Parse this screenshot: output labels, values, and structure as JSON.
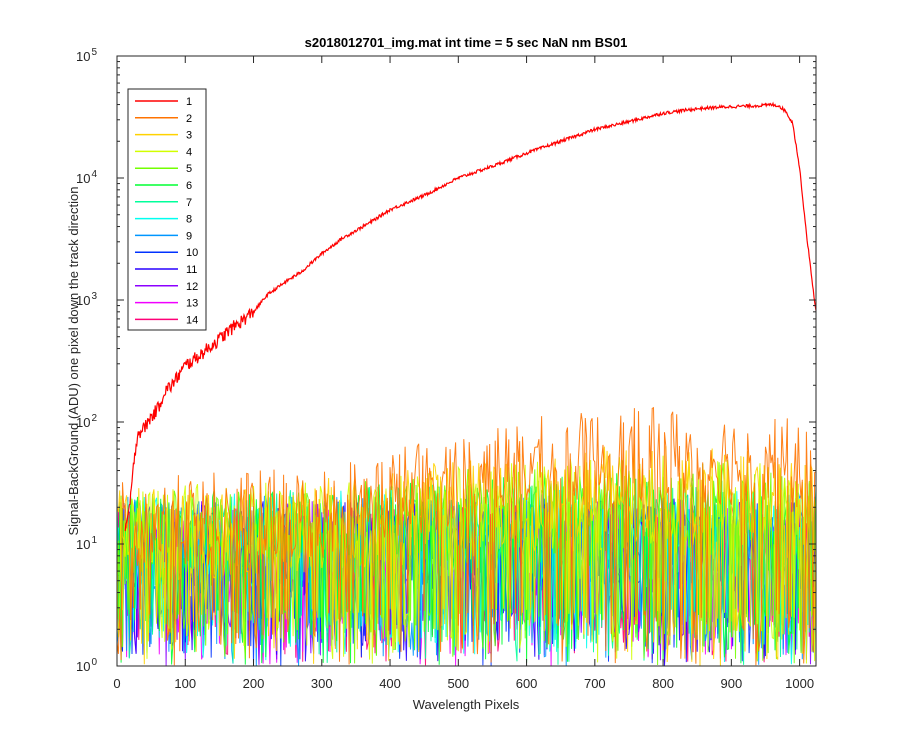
{
  "chart_data": {
    "type": "line",
    "title": "s2018012701_img.mat int time = 5 sec  NaN nm BS01",
    "xlabel": "Wavelength Pixels",
    "ylabel": "Signal-BackGround (ADU) one pixel down the track direction",
    "xlim": [
      0,
      1024
    ],
    "ylim": [
      1,
      100000
    ],
    "yscale": "log",
    "grid": false,
    "legend_position": "top-left",
    "x_ticks": [
      0,
      100,
      200,
      300,
      400,
      500,
      600,
      700,
      800,
      900,
      1000
    ],
    "y_ticks": [
      {
        "value": 1,
        "base": "10",
        "exp": "0"
      },
      {
        "value": 10,
        "base": "10",
        "exp": "1"
      },
      {
        "value": 100,
        "base": "10",
        "exp": "2"
      },
      {
        "value": 1000,
        "base": "10",
        "exp": "3"
      },
      {
        "value": 10000,
        "base": "10",
        "exp": "4"
      },
      {
        "value": 100000,
        "base": "10",
        "exp": "5"
      }
    ],
    "series": [
      {
        "name": "1",
        "color": "#ff0000",
        "kind": "signal",
        "x": [
          12,
          18,
          22,
          25,
          30,
          35,
          40,
          50,
          60,
          70,
          80,
          100,
          120,
          150,
          170,
          200,
          220,
          250,
          270,
          300,
          330,
          370,
          400,
          450,
          500,
          550,
          600,
          650,
          700,
          750,
          800,
          850,
          880,
          900,
          930,
          950,
          960,
          970,
          980,
          990,
          1000,
          1010,
          1020,
          1024
        ],
        "y": [
          12,
          20,
          30,
          50,
          80,
          85,
          90,
          110,
          130,
          180,
          200,
          290,
          350,
          480,
          600,
          800,
          1100,
          1450,
          1700,
          2400,
          3200,
          4300,
          5500,
          7200,
          10000,
          12500,
          16000,
          20000,
          25000,
          29000,
          34000,
          37000,
          38000,
          38500,
          39000,
          39500,
          40000,
          39000,
          35000,
          28000,
          12000,
          3500,
          1200,
          800
        ]
      },
      {
        "name": "2",
        "color": "#ff7300",
        "kind": "noise",
        "base": [
          [
            0,
            14
          ],
          [
            300,
            18
          ],
          [
            400,
            25
          ],
          [
            500,
            35
          ],
          [
            600,
            45
          ],
          [
            700,
            50
          ],
          [
            800,
            55
          ],
          [
            900,
            50
          ],
          [
            980,
            45
          ],
          [
            1024,
            30
          ]
        ]
      },
      {
        "name": "3",
        "color": "#ffd200",
        "kind": "noise",
        "base": [
          [
            0,
            12
          ],
          [
            300,
            14
          ],
          [
            500,
            20
          ],
          [
            700,
            28
          ],
          [
            900,
            25
          ],
          [
            1024,
            18
          ]
        ]
      },
      {
        "name": "4",
        "color": "#d2ff00",
        "kind": "noise",
        "base": [
          [
            0,
            12
          ],
          [
            300,
            14
          ],
          [
            500,
            18
          ],
          [
            700,
            22
          ],
          [
            900,
            22
          ],
          [
            1024,
            16
          ]
        ]
      },
      {
        "name": "5",
        "color": "#73ff00",
        "kind": "noise",
        "base": [
          [
            0,
            11
          ],
          [
            300,
            13
          ],
          [
            500,
            17
          ],
          [
            700,
            20
          ],
          [
            900,
            20
          ],
          [
            1024,
            15
          ]
        ]
      },
      {
        "name": "6",
        "color": "#00ff32",
        "kind": "noise",
        "base": [
          [
            0,
            10
          ],
          [
            500,
            14
          ],
          [
            700,
            16
          ],
          [
            1024,
            13
          ]
        ]
      },
      {
        "name": "7",
        "color": "#00ff9b",
        "kind": "noise",
        "base": [
          [
            0,
            10
          ],
          [
            500,
            13
          ],
          [
            1024,
            12
          ]
        ]
      },
      {
        "name": "8",
        "color": "#00fff0",
        "kind": "noise",
        "base": [
          [
            0,
            10
          ],
          [
            500,
            12
          ],
          [
            1024,
            11
          ]
        ]
      },
      {
        "name": "9",
        "color": "#0096ff",
        "kind": "noise",
        "base": [
          [
            0,
            10
          ],
          [
            1024,
            11
          ]
        ]
      },
      {
        "name": "10",
        "color": "#0032ff",
        "kind": "noise",
        "base": [
          [
            0,
            9
          ],
          [
            1024,
            10
          ]
        ]
      },
      {
        "name": "11",
        "color": "#2800ff",
        "kind": "noise",
        "base": [
          [
            0,
            9
          ],
          [
            1024,
            10
          ]
        ]
      },
      {
        "name": "12",
        "color": "#8c00ff",
        "kind": "noise",
        "base": [
          [
            0,
            9
          ],
          [
            1024,
            10
          ]
        ]
      },
      {
        "name": "13",
        "color": "#f000ff",
        "kind": "noise",
        "base": [
          [
            0,
            8
          ],
          [
            1024,
            9
          ]
        ]
      },
      {
        "name": "14",
        "color": "#ff0078",
        "kind": "noise",
        "base": [
          [
            0,
            8
          ],
          [
            1024,
            9
          ]
        ]
      }
    ]
  }
}
